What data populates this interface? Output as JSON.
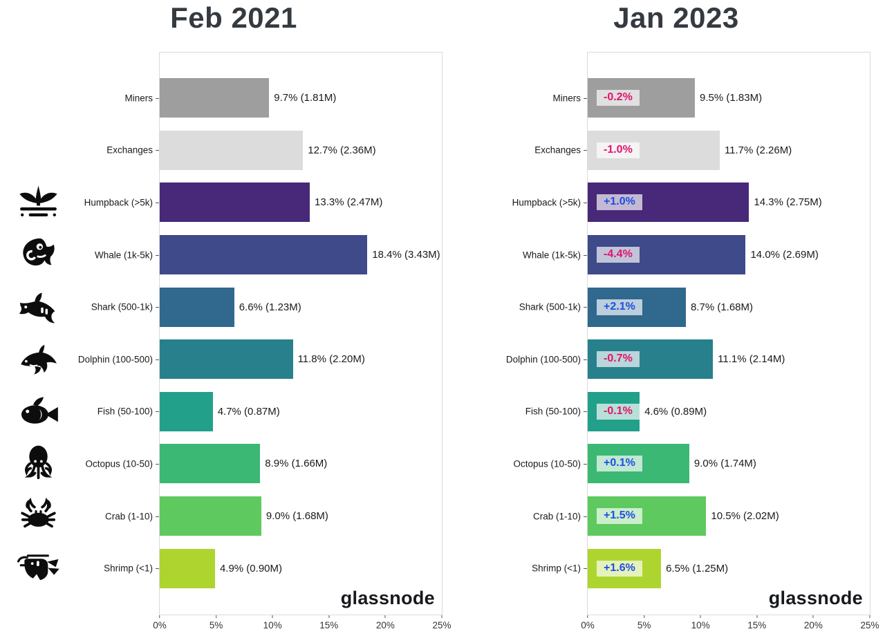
{
  "chart_data": [
    {
      "type": "bar",
      "orientation": "horizontal",
      "title": "Feb 2021",
      "watermark": "glassnode",
      "xlim": [
        0,
        25
      ],
      "x_ticks": [
        "0%",
        "5%",
        "10%",
        "15%",
        "20%",
        "25%"
      ],
      "grid": false,
      "legend": "none",
      "categories": [
        "Miners",
        "Exchanges",
        "Humpback (>5k)",
        "Whale (1k-5k)",
        "Shark (500-1k)",
        "Dolphin (100-500)",
        "Fish (50-100)",
        "Octopus (10-50)",
        "Crab (1-10)",
        "Shrimp (<1)"
      ],
      "values": [
        9.7,
        12.7,
        13.3,
        18.4,
        6.6,
        11.8,
        4.7,
        8.9,
        9.0,
        4.9
      ],
      "bar_labels": [
        "9.7% (1.81M)",
        "12.7% (2.36M)",
        "13.3% (2.47M)",
        "18.4% (3.43M)",
        "6.6% (1.23M)",
        "11.8% (2.20M)",
        "4.7% (0.87M)",
        "8.9% (1.66M)",
        "9.0% (1.68M)",
        "4.9% (0.90M)"
      ],
      "bar_colors": [
        "#9e9e9e",
        "#dcdcdc",
        "#482878",
        "#3e4a89",
        "#31688e",
        "#27808c",
        "#22a08a",
        "#3bb873",
        "#5ec95e",
        "#aed52f"
      ],
      "row_icons": [
        null,
        null,
        "humpback-tail-icon",
        "whale-icon",
        "shark-icon",
        "dolphin-icon",
        "fish-icon",
        "octopus-icon",
        "crab-icon",
        "shrimp-icon"
      ]
    },
    {
      "type": "bar",
      "orientation": "horizontal",
      "title": "Jan 2023",
      "watermark": "glassnode",
      "xlim": [
        0,
        25
      ],
      "x_ticks": [
        "0%",
        "5%",
        "10%",
        "15%",
        "20%",
        "25%"
      ],
      "grid": false,
      "legend": "none",
      "categories": [
        "Miners",
        "Exchanges",
        "Humpback (>5k)",
        "Whale (1k-5k)",
        "Shark (500-1k)",
        "Dolphin (100-500)",
        "Fish (50-100)",
        "Octopus (10-50)",
        "Crab (1-10)",
        "Shrimp (<1)"
      ],
      "values": [
        9.5,
        11.7,
        14.3,
        14.0,
        8.7,
        11.1,
        4.6,
        9.0,
        10.5,
        6.5
      ],
      "bar_labels": [
        "9.5% (1.83M)",
        "11.7% (2.26M)",
        "14.3% (2.75M)",
        "14.0% (2.69M)",
        "8.7% (1.68M)",
        "11.1% (2.14M)",
        "4.6% (0.89M)",
        "9.0% (1.74M)",
        "10.5% (2.02M)",
        "6.5% (1.25M)"
      ],
      "changes": [
        "-0.2%",
        "-1.0%",
        "+1.0%",
        "-4.4%",
        "+2.1%",
        "-0.7%",
        "-0.1%",
        "+0.1%",
        "+1.5%",
        "+1.6%"
      ],
      "bar_colors": [
        "#9e9e9e",
        "#dcdcdc",
        "#482878",
        "#3e4a89",
        "#31688e",
        "#27808c",
        "#22a08a",
        "#3bb873",
        "#5ec95e",
        "#aed52f"
      ]
    }
  ],
  "style": {
    "badge_positive_color": "#1c4fe3",
    "badge_negative_color": "#e3126e",
    "badge_background": "rgba(255,255,255,0.68)",
    "title_color": "#343a40",
    "axis_text_color": "#333333",
    "plot_border_color": "#dadada",
    "icon_color": "#0d0d0d",
    "background": "#ffffff"
  }
}
